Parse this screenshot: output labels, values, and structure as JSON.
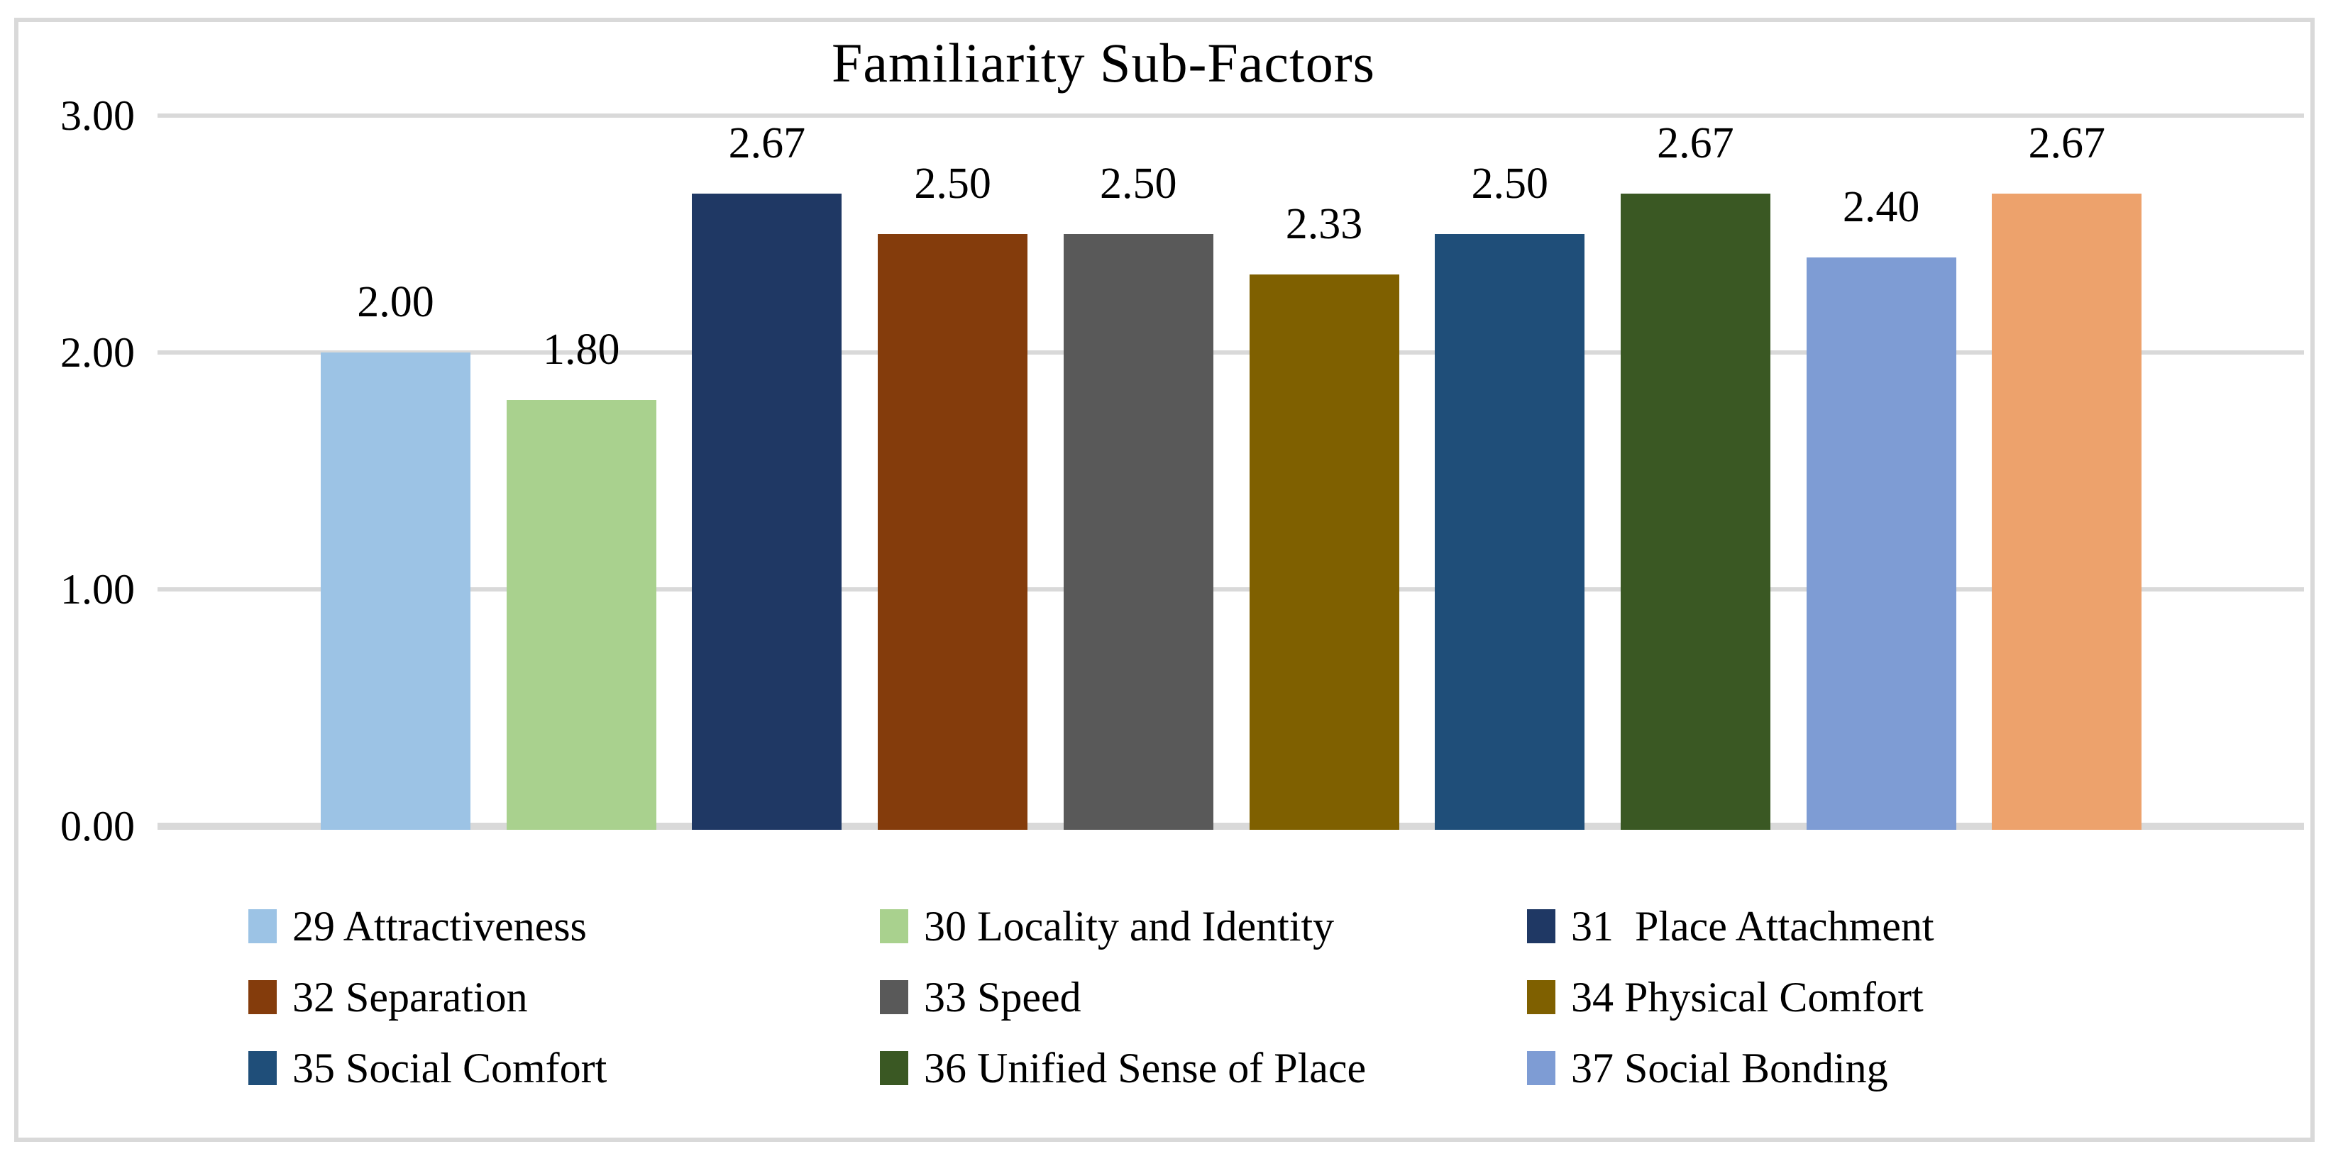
{
  "chart_data": {
    "type": "bar",
    "title": "Familiarity Sub-Factors",
    "categories": [
      "29 Attractiveness",
      "30 Locality and Identity",
      "31  Place Attachment",
      "32 Separation",
      "33 Speed",
      "34 Physical Comfort",
      "35 Social Comfort",
      "36 Unified Sense of Place",
      "37 Social Bonding",
      ""
    ],
    "values": [
      2.0,
      1.8,
      2.67,
      2.5,
      2.5,
      2.33,
      2.5,
      2.67,
      2.4,
      2.67
    ],
    "value_labels": [
      "2.00",
      "1.80",
      "2.67",
      "2.50",
      "2.50",
      "2.33",
      "2.50",
      "2.67",
      "2.40",
      "2.67"
    ],
    "bar_colors": [
      "#9CC3E5",
      "#A9D18E",
      "#1F3864",
      "#843C0C",
      "#595959",
      "#7F6000",
      "#1F4E79",
      "#3A5823",
      "#7E9CD4",
      "#EDA26C"
    ],
    "xlabel": "",
    "ylabel": "",
    "ylim": [
      0,
      3
    ],
    "yticks": [
      {
        "label": "0.00",
        "value": 0
      },
      {
        "label": "1.00",
        "value": 1
      },
      {
        "label": "2.00",
        "value": 2
      },
      {
        "label": "3.00",
        "value": 3
      }
    ],
    "grid": true,
    "legend_position": "bottom"
  },
  "legend": {
    "items": [
      {
        "label": "29 Attractiveness",
        "color": "#9CC3E5"
      },
      {
        "label": "30 Locality and Identity",
        "color": "#A9D18E"
      },
      {
        "label": "31  Place Attachment",
        "color": "#1F3864"
      },
      {
        "label": "32 Separation",
        "color": "#843C0C"
      },
      {
        "label": "33 Speed",
        "color": "#595959"
      },
      {
        "label": "34 Physical Comfort",
        "color": "#7F6000"
      },
      {
        "label": "35 Social Comfort",
        "color": "#1F4E79"
      },
      {
        "label": "36 Unified Sense of Place",
        "color": "#3A5823"
      },
      {
        "label": "37 Social Bonding",
        "color": "#7E9CD4"
      }
    ]
  },
  "colors": {
    "gridline": "#D9D9D9",
    "frame_border": "#D9D9D9",
    "text": "#000000",
    "background": "#FFFFFF"
  }
}
